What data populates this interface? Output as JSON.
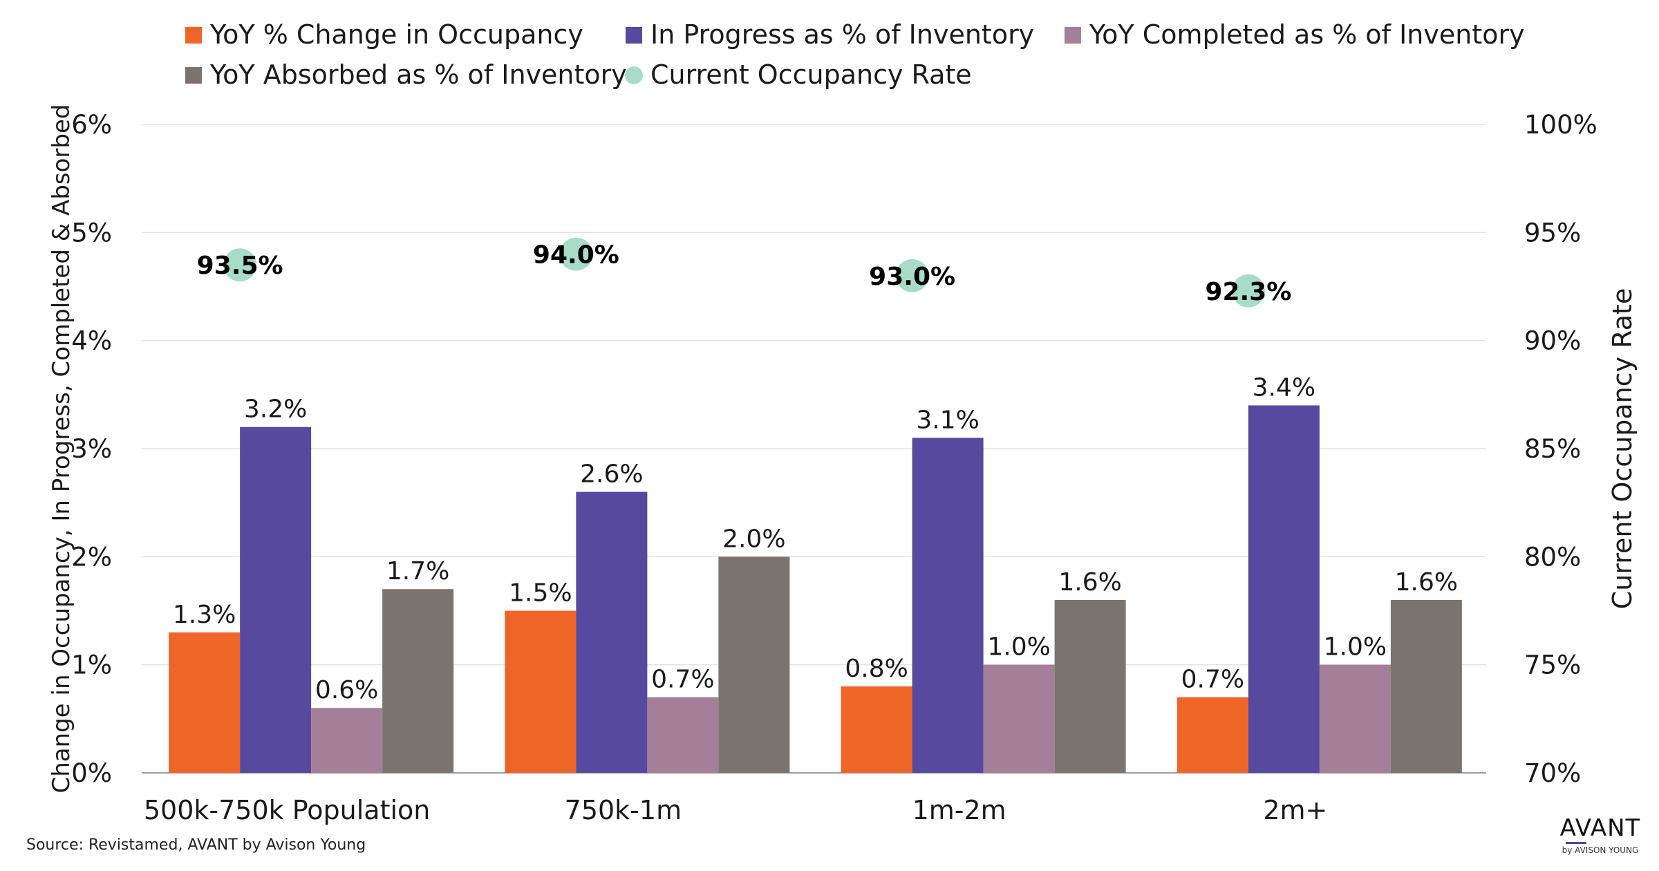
{
  "chart_data": {
    "type": "bar",
    "categories": [
      "500k-750k Population",
      "750k-1m",
      "1m-2m",
      "2m+"
    ],
    "series": [
      {
        "name": "YoY % Change in Occupancy",
        "color": "#ef6529",
        "values": [
          1.3,
          1.5,
          0.8,
          0.7
        ],
        "labels": [
          "1.3%",
          "1.5%",
          "0.8%",
          "0.7%"
        ]
      },
      {
        "name": "In Progress as % of Inventory",
        "color": "#56499e",
        "values": [
          3.2,
          2.6,
          3.1,
          3.4
        ],
        "labels": [
          "3.2%",
          "2.6%",
          "3.1%",
          "3.4%"
        ]
      },
      {
        "name": "YoY Completed as % of Inventory",
        "color": "#a37f98",
        "values": [
          0.6,
          0.7,
          1.0,
          1.0
        ],
        "labels": [
          "0.6%",
          "0.7%",
          "1.0%",
          "1.0%"
        ]
      },
      {
        "name": "YoY Absorbed as % of Inventory",
        "color": "#7b7370",
        "values": [
          1.7,
          2.0,
          1.6,
          1.6
        ],
        "labels": [
          "1.7%",
          "2.0%",
          "1.6%",
          "1.6%"
        ]
      }
    ],
    "secondary_series": {
      "name": "Current Occupancy Rate",
      "type": "scatter",
      "color": "#a8dcc8",
      "values": [
        93.5,
        94.0,
        93.0,
        92.3
      ],
      "labels": [
        "93.5%",
        "94.0%",
        "93.0%",
        "92.3%"
      ]
    },
    "ylabel": "Change in Occupancy, In Progress, Completed & Absorbed",
    "ylabel_right": "Current Occupancy Rate",
    "ylim": [
      0,
      6
    ],
    "ylim_right": [
      70,
      100
    ],
    "yticks": [
      "0%",
      "1%",
      "2%",
      "3%",
      "4%",
      "5%",
      "6%"
    ],
    "yticks_right": [
      "70%",
      "75%",
      "80%",
      "85%",
      "90%",
      "95%",
      "100%"
    ],
    "grid": true,
    "legend_position": "top"
  },
  "source": "Source: Revistamed, AVANT by Avison Young",
  "logo": {
    "main": "AVANT",
    "sub": "by AVISON YOUNG"
  }
}
